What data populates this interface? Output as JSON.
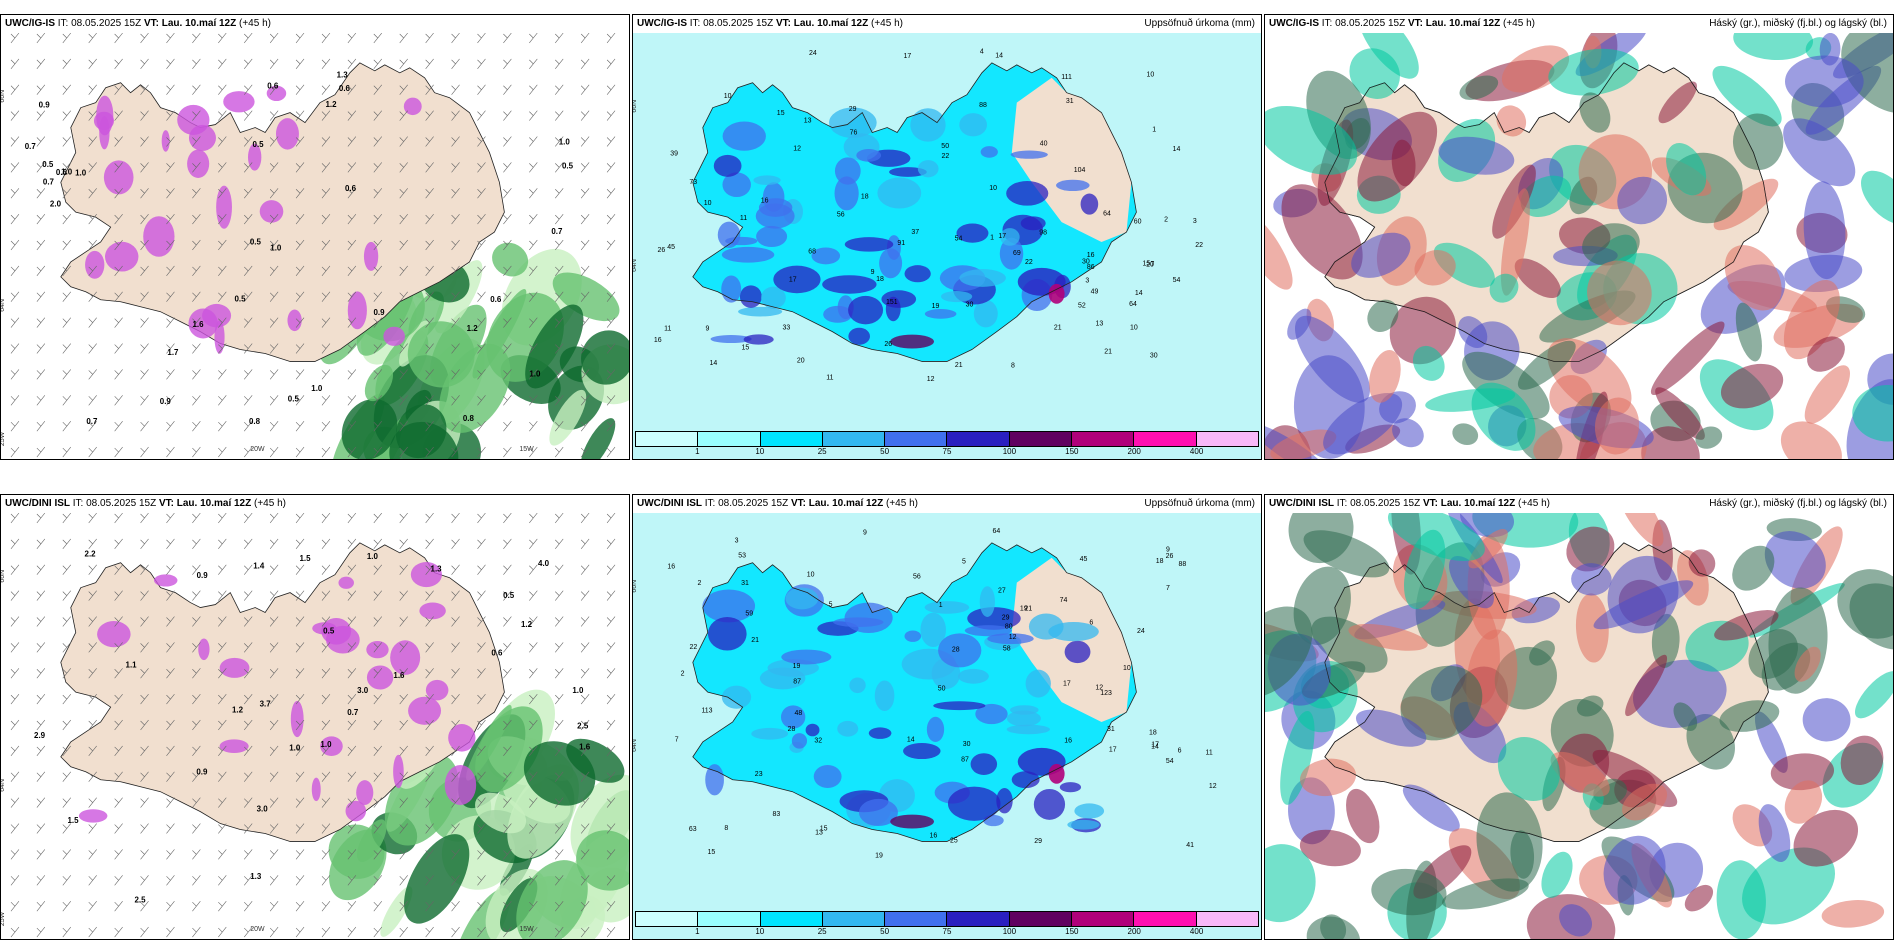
{
  "layout": {
    "rows": 2,
    "cols": 3
  },
  "panels": [
    {
      "id": "igis-wind",
      "model": "UWC/IG-IS",
      "it_label": "IT:",
      "it": "08.05.2025 15Z",
      "vt_label": "VT:",
      "vt": "Lau. 10.maí 12Z",
      "lead": "(+45 h)",
      "right_title": "",
      "kind": "wind",
      "axis_labels": [
        "66N",
        "64N",
        "25W",
        "20W",
        "15W"
      ],
      "values": [
        "0.6",
        "0.7",
        "0.8",
        "0.6",
        "0.5",
        "0.5",
        "1.0",
        "0.7",
        "0.8",
        "1.2",
        "1.0",
        "0.5",
        "1.3",
        "0.6",
        "0.9",
        "1.2",
        "0.9",
        "1.0",
        "1.0",
        "0.7",
        "1.0",
        "0.5",
        "0.7",
        "0.9",
        "1.0",
        "0.6",
        "2.0",
        "1.7",
        "0.5",
        "0.6",
        "1.6",
        "0.5"
      ]
    },
    {
      "id": "igis-precip",
      "model": "UWC/IG-IS",
      "it_label": "IT:",
      "it": "08.05.2025 15Z",
      "vt_label": "VT:",
      "vt": "Lau. 10.maí 12Z",
      "lead": "(+45 h)",
      "right_title": "Uppsöfnuð úrkoma (mm)",
      "kind": "precip",
      "axis_labels": [
        "66N",
        "64N"
      ],
      "values": [
        "11",
        "10",
        "22",
        "30",
        "33",
        "40",
        "18",
        "20",
        "16",
        "26",
        "26",
        "29",
        "21",
        "15",
        "19",
        "14",
        "17",
        "22",
        "16",
        "17",
        "14",
        "13",
        "16",
        "15",
        "17",
        "14",
        "22",
        "37",
        "31",
        "30",
        "49",
        "52",
        "60",
        "54",
        "56",
        "68",
        "73",
        "86",
        "76",
        "98",
        "91",
        "151",
        "104",
        "69",
        "64",
        "88",
        "111",
        "64",
        "50",
        "39",
        "30",
        "10",
        "15",
        "12",
        "11",
        "10",
        "13",
        "20",
        "21",
        "24",
        "54",
        "45",
        "14",
        "18",
        "9",
        "1",
        "2",
        "3",
        "4",
        "1",
        "10",
        "7",
        "8",
        "9",
        "10",
        "12",
        "11",
        "21",
        "3"
      ],
      "legend": {
        "colors": [
          "#ccffff",
          "#99ffff",
          "#00e5ff",
          "#33b8f0",
          "#4070ee",
          "#2a20c0",
          "#600060",
          "#b0007a",
          "#ff10b0",
          "#f8b8f8"
        ],
        "ticks": [
          "1",
          "10",
          "25",
          "50",
          "75",
          "100",
          "150",
          "200",
          "400"
        ]
      }
    },
    {
      "id": "igis-cloud",
      "model": "UWC/IG-IS",
      "it_label": "IT:",
      "it": "08.05.2025 15Z",
      "vt_label": "VT:",
      "vt": "Lau. 10.maí 12Z",
      "lead": "(+45 h)",
      "right_title": "Háský (gr.), miðský (fj.bl.) og lágský (bl.)",
      "kind": "cloud"
    },
    {
      "id": "dini-wind",
      "model": "UWC/DINI ISL",
      "it_label": "IT:",
      "it": "08.05.2025 15Z",
      "vt_label": "VT:",
      "vt": "Lau. 10.maí 12Z",
      "lead": "(+45 h)",
      "right_title": "",
      "kind": "wind",
      "axis_labels": [
        "66N",
        "64N",
        "25W",
        "20W",
        "15W"
      ],
      "values": [
        "0.7",
        "1.0",
        "1.3",
        "0.5",
        "1.0",
        "0.9",
        "1.2",
        "1.4",
        "2.5",
        "3.7",
        "2.5",
        "2.2",
        "2.9",
        "0.9",
        "1.6",
        "1.5",
        "1.5",
        "1.0",
        "1.1",
        "0.6",
        "1.3",
        "3.0",
        "4.0",
        "3.0",
        "1.0",
        "1.6",
        "1.2",
        "0.5"
      ]
    },
    {
      "id": "dini-precip",
      "model": "UWC/DINI ISL",
      "it_label": "IT:",
      "it": "08.05.2025 15Z",
      "vt_label": "VT:",
      "vt": "Lau. 10.maí 12Z",
      "lead": "(+45 h)",
      "right_title": "Uppsöfnuð úrkoma (mm)",
      "kind": "precip",
      "axis_labels": [
        "66N",
        "64N"
      ],
      "values": [
        "15",
        "19",
        "10",
        "25",
        "31",
        "29",
        "24",
        "23",
        "19",
        "12",
        "15",
        "16",
        "21",
        "17",
        "19",
        "17",
        "18",
        "12",
        "14",
        "14",
        "22",
        "16",
        "18",
        "12",
        "29",
        "28",
        "50",
        "63",
        "74",
        "87",
        "83",
        "123",
        "87",
        "56",
        "113",
        "88",
        "53",
        "54",
        "41",
        "64",
        "80",
        "58",
        "59",
        "30",
        "32",
        "31",
        "16",
        "10",
        "9",
        "9",
        "7",
        "6",
        "6",
        "5",
        "2",
        "2",
        "1",
        "3",
        "7",
        "8",
        "5",
        "28",
        "17",
        "26",
        "11",
        "21",
        "13",
        "27",
        "48",
        "45"
      ],
      "legend": {
        "colors": [
          "#ccffff",
          "#99ffff",
          "#00e5ff",
          "#33b8f0",
          "#4070ee",
          "#2a20c0",
          "#600060",
          "#b0007a",
          "#ff10b0",
          "#f8b8f8"
        ],
        "ticks": [
          "1",
          "10",
          "25",
          "50",
          "75",
          "100",
          "150",
          "200",
          "400"
        ]
      }
    },
    {
      "id": "dini-cloud",
      "model": "UWC/DINI ISL",
      "it_label": "IT:",
      "it": "08.05.2025 15Z",
      "vt_label": "VT:",
      "vt": "Lau. 10.maí 12Z",
      "lead": "(+45 h)",
      "right_title": "Háský (gr.), miðský (fj.bl.) og lágský (bl.)",
      "kind": "cloud"
    }
  ],
  "colors": {
    "land": "#f1dfcf",
    "sea": "#ffffff",
    "coast": "#222222",
    "wind_light": "#c8f0c0",
    "wind_mid": "#66c270",
    "wind_dark": "#0e6a2e",
    "magenta": "#cc55dd",
    "high_cloud": "#2f6b50",
    "mid_cloud": "#8a1a3a",
    "low_cloud": "#4a4cc8",
    "teal": "#00c8a0",
    "orange": "#e07060"
  }
}
